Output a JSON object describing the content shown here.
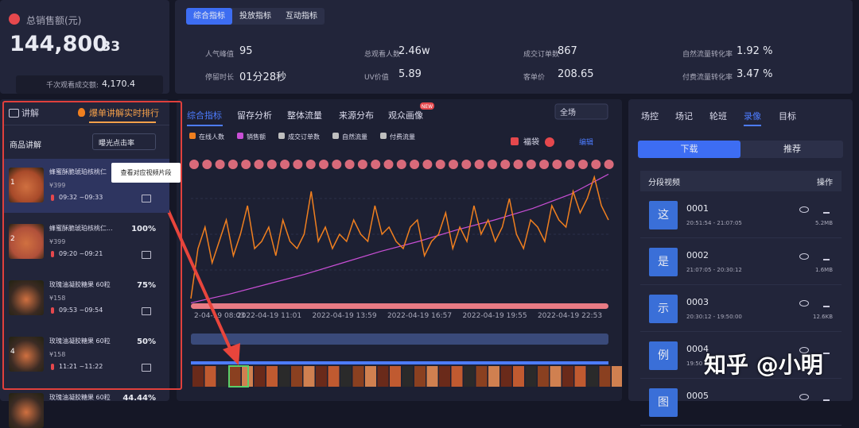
{
  "header": {
    "sales_label": "总销售额(元)",
    "sales_int": "144,800",
    "sales_dec": ".33",
    "gpm_label": "千次观看成交额:",
    "gpm_value": "4,170.4"
  },
  "metric_tabs": [
    "综合指标",
    "投放指标",
    "互动指标"
  ],
  "metrics": [
    {
      "label": "人气峰值",
      "value": "95"
    },
    {
      "label": "总观看人数",
      "value": "2.46w"
    },
    {
      "label": "成交订单数",
      "value": "867"
    },
    {
      "label": "自然流量转化率",
      "value": "1.92 %"
    },
    {
      "label": "停留时长",
      "value": "01分28秒"
    },
    {
      "label": "UV价值",
      "value": "5.89"
    },
    {
      "label": "客单价",
      "value": "208.65"
    },
    {
      "label": "付费流量转化率",
      "value": "3.47 %"
    }
  ],
  "left": {
    "title": "讲解",
    "ranking": "爆单讲解实时排行",
    "section": "商品讲解",
    "sort": "曝光点击率",
    "tooltip": "查看对应视频片段",
    "items": [
      {
        "rank": "1",
        "name": "蜂蜜酥脆琥珀核桃仁",
        "price": "¥399",
        "time": "09:32 ~09:33"
      },
      {
        "rank": "2",
        "name": "蜂蜜酥脆琥珀核桃仁...",
        "price": "¥399",
        "time": "09:20 ~09:21",
        "pct": "100%"
      },
      {
        "name": "玫瑰油凝胶糖果 60粒",
        "price": "¥158",
        "time": "09:53 ~09:54",
        "pct": "75%"
      },
      {
        "rank": "4",
        "name": "玫瑰油凝胶糖果 60粒",
        "price": "¥158",
        "time": "11:21 ~11:22",
        "pct": "50%"
      },
      {
        "name": "玫瑰油凝胶糖果 60粒",
        "pct": "44.44%"
      }
    ]
  },
  "chart_panel": {
    "tabs": [
      "综合指标",
      "留存分析",
      "整体流量",
      "来源分布",
      "观众画像"
    ],
    "badge": "NEW",
    "scope": "全场",
    "lucky_bag": "福袋",
    "edit": "编辑"
  },
  "chart_data": {
    "type": "line",
    "ylim": [
      0,
      100
    ],
    "xticks": [
      "2-04-19 08:03",
      "2022-04-19 11:01",
      "2022-04-19 13:59",
      "2022-04-19 16:57",
      "2022-04-19 19:55",
      "2022-04-19 22:53"
    ],
    "series": [
      {
        "name": "在线人数",
        "color": "#f07f1f",
        "values": [
          5,
          40,
          55,
          30,
          45,
          60,
          35,
          50,
          70,
          40,
          45,
          55,
          35,
          60,
          45,
          40,
          50,
          80,
          45,
          55,
          40,
          50,
          45,
          60,
          50,
          45,
          70,
          50,
          55,
          45,
          40,
          55,
          60,
          35,
          45,
          50,
          65,
          40,
          55,
          45,
          70,
          50,
          60,
          45,
          55,
          75,
          50,
          40,
          60,
          55,
          45,
          70,
          60,
          55,
          80,
          65,
          75,
          90,
          70,
          60
        ]
      },
      {
        "name": "销售额",
        "color": "#c94fd6",
        "values": [
          2,
          8,
          15,
          22,
          30,
          38,
          45,
          53,
          60,
          68,
          78,
          92
        ]
      },
      {
        "name": "成交订单数",
        "color": "#bfbfbf"
      },
      {
        "name": "自然流量",
        "color": "#bfbfbf"
      },
      {
        "name": "付费流量",
        "color": "#bfbfbf"
      }
    ]
  },
  "right": {
    "tabs": [
      "场控",
      "场记",
      "轮班",
      "录像",
      "目标"
    ],
    "download": "下载",
    "recommend": "推荐",
    "col_video": "分段视频",
    "col_action": "操作",
    "videos": [
      {
        "icon": "这",
        "id": "0001",
        "time": "20:51:54 - 21:07:05",
        "size": "5.2MB"
      },
      {
        "icon": "是",
        "id": "0002",
        "time": "21:07:05 - 20:30:12",
        "size": "1.6MB"
      },
      {
        "icon": "示",
        "id": "0003",
        "time": "20:30:12 - 19:50:00",
        "size": "12.6KB"
      },
      {
        "icon": "例",
        "id": "0004",
        "time": "19:50"
      },
      {
        "icon": "图",
        "id": "0005"
      }
    ]
  },
  "watermark": "知乎 @小明"
}
